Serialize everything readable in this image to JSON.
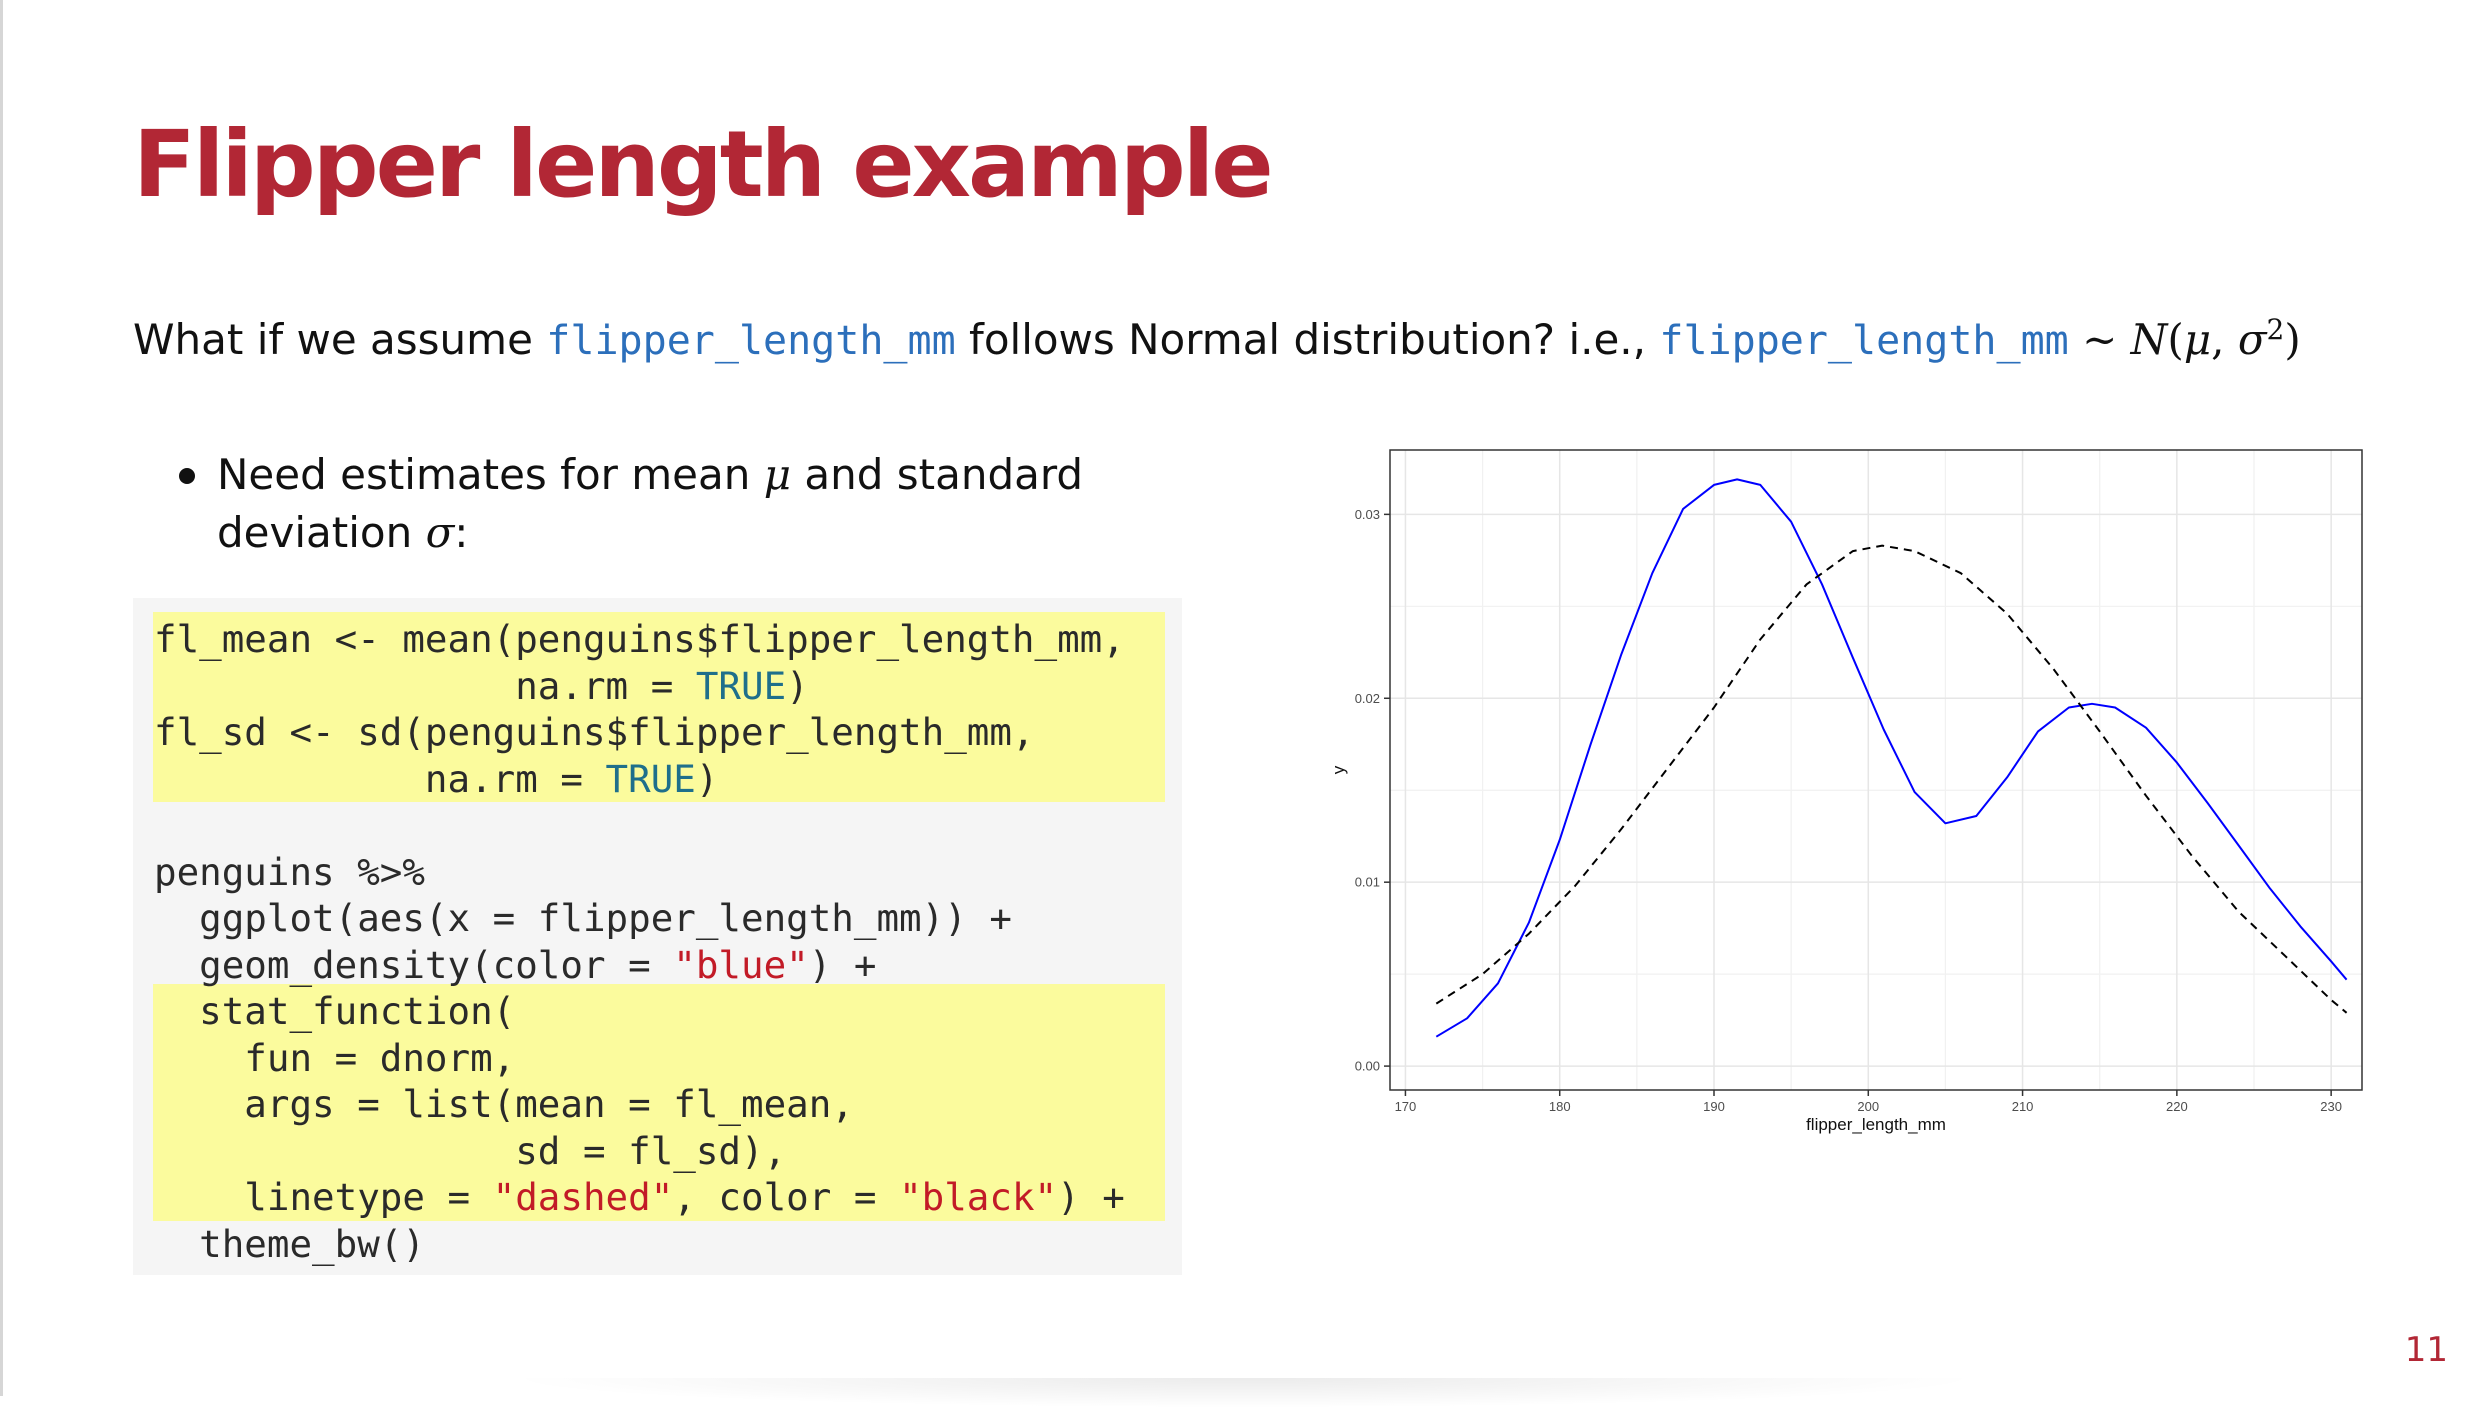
{
  "slide": {
    "title": "Flipper length example",
    "page_number": "11"
  },
  "intro": {
    "text1": "What if we assume ",
    "code1": "flipper_length_mm",
    "text2": " follows Normal distribution? i.e., ",
    "code2": "flipper_length_mm",
    "math_tilde": " ∼ ",
    "math_N": "N",
    "math_open": "(",
    "math_mu": "μ",
    "math_comma": ", ",
    "math_sigma": "σ",
    "math_sup": "2",
    "math_close": ")"
  },
  "bullets": [
    {
      "text1": "Need estimates for mean ",
      "math1": "μ",
      "text2": " and standard deviation ",
      "math2": "σ",
      "text3": ":"
    }
  ],
  "code": {
    "lines": [
      [
        {
          "t": "fl_mean <- mean(penguins$flipper_length_mm,"
        }
      ],
      [
        {
          "t": "                na.rm = "
        },
        {
          "t": "TRUE",
          "c": "kw"
        },
        {
          "t": ")"
        }
      ],
      [
        {
          "t": "fl_sd <- sd(penguins$flipper_length_mm,"
        }
      ],
      [
        {
          "t": "            na.rm = "
        },
        {
          "t": "TRUE",
          "c": "kw"
        },
        {
          "t": ")"
        }
      ],
      [
        {
          "t": ""
        }
      ],
      [
        {
          "t": "penguins %>%"
        }
      ],
      [
        {
          "t": "  ggplot(aes(x = flipper_length_mm)) +"
        }
      ],
      [
        {
          "t": "  geom_density(color = "
        },
        {
          "t": "\"blue\"",
          "c": "str"
        },
        {
          "t": ") +"
        }
      ],
      [
        {
          "t": "  stat_function("
        }
      ],
      [
        {
          "t": "    fun = dnorm,"
        }
      ],
      [
        {
          "t": "    args = list(mean = fl_mean,"
        }
      ],
      [
        {
          "t": "                sd = fl_sd),"
        }
      ],
      [
        {
          "t": "    linetype = "
        },
        {
          "t": "\"dashed\"",
          "c": "str"
        },
        {
          "t": ", color = "
        },
        {
          "t": "\"black\"",
          "c": "str"
        },
        {
          "t": ") +"
        }
      ],
      [
        {
          "t": "  theme_bw()"
        }
      ]
    ],
    "highlighted_ranges": [
      [
        0,
        3
      ],
      [
        8,
        12
      ]
    ]
  },
  "chart_data": {
    "type": "line",
    "xlabel": "flipper_length_mm",
    "ylabel": "y",
    "xlim": [
      169,
      232
    ],
    "ylim": [
      -0.0013,
      0.0335
    ],
    "x_ticks": [
      170,
      180,
      190,
      200,
      210,
      220,
      230
    ],
    "y_ticks": [
      0.0,
      0.01,
      0.02,
      0.03
    ],
    "y_tick_labels": [
      "0.00",
      "0.01",
      "0.02",
      "0.03"
    ],
    "grid": true,
    "legend": "none",
    "series": [
      {
        "color": "#0000ff",
        "linetype": "solid",
        "x": [
          172,
          174,
          176,
          178,
          180,
          182,
          184,
          186,
          188,
          190,
          191.5,
          193,
          195,
          197,
          199,
          201,
          203,
          205,
          207,
          209,
          211,
          213,
          214.5,
          216,
          218,
          220,
          222,
          224,
          226,
          228,
          230,
          231
        ],
        "y": [
          0.0016,
          0.0026,
          0.0045,
          0.0078,
          0.0123,
          0.0175,
          0.0224,
          0.0268,
          0.0303,
          0.0316,
          0.0319,
          0.0316,
          0.0296,
          0.0262,
          0.0222,
          0.0183,
          0.0149,
          0.0132,
          0.0136,
          0.0157,
          0.0182,
          0.0195,
          0.0197,
          0.0195,
          0.0184,
          0.0165,
          0.0143,
          0.012,
          0.0097,
          0.0076,
          0.0057,
          0.0047
        ]
      },
      {
        "color": "#000000",
        "linetype": "dashed",
        "x": [
          172,
          175,
          178,
          181,
          184,
          187,
          190,
          193,
          196,
          199,
          200.9,
          203,
          206,
          209,
          212,
          215,
          218,
          221,
          224,
          227,
          230,
          231
        ],
        "y": [
          0.0034,
          0.005,
          0.0072,
          0.0098,
          0.0129,
          0.0162,
          0.0195,
          0.0232,
          0.0262,
          0.028,
          0.0283,
          0.028,
          0.0268,
          0.0246,
          0.0216,
          0.0182,
          0.0147,
          0.0114,
          0.0084,
          0.006,
          0.0036,
          0.0029
        ]
      }
    ]
  }
}
